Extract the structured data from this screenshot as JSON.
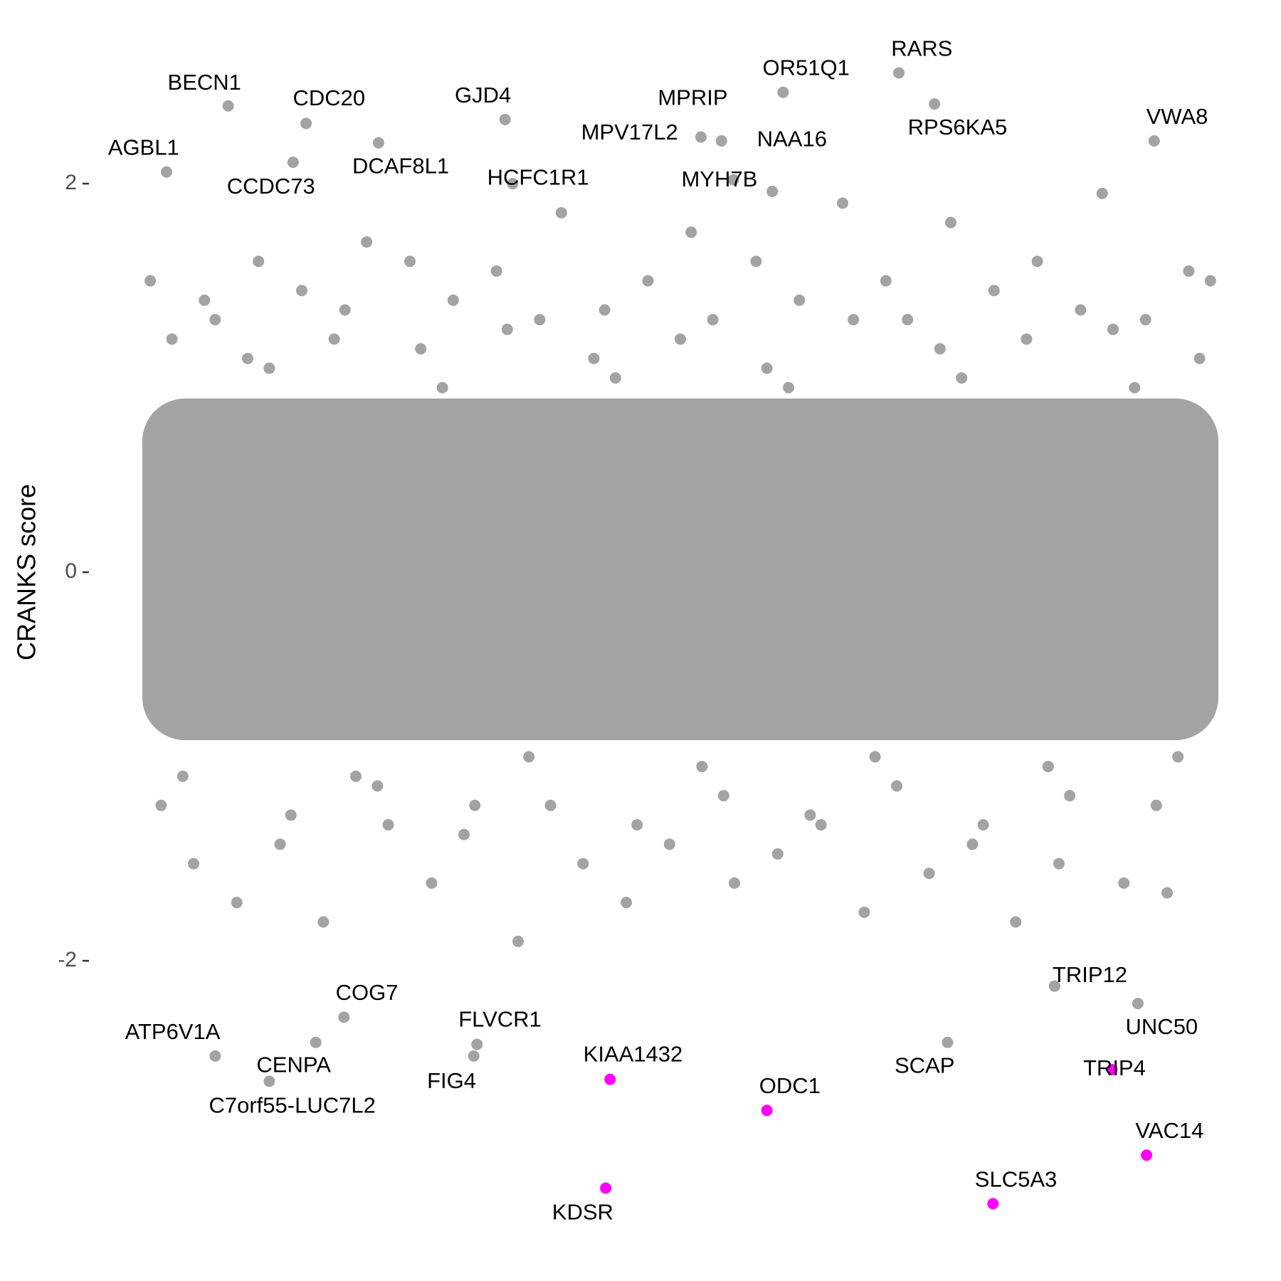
{
  "chart_data": {
    "type": "scatter",
    "y_label": "CRANKS score",
    "xlim": [
      0,
      100
    ],
    "ylim": [
      -3.3,
      2.65
    ],
    "yticks": [
      -2,
      0,
      2
    ],
    "colors": {
      "background": "#a3a3a3",
      "highlight": "#ff00ff"
    },
    "background": {
      "x": [
        1,
        3,
        5,
        7,
        9,
        11,
        13,
        15,
        17,
        19,
        21,
        23,
        25,
        27,
        29,
        31,
        33,
        35,
        37,
        39,
        41,
        43,
        45,
        47,
        49,
        51,
        53,
        55,
        57,
        59,
        61,
        63,
        65,
        67,
        69,
        71,
        73,
        75,
        77,
        79,
        81,
        83,
        85,
        87,
        89,
        91,
        93,
        95,
        97,
        99,
        2,
        6,
        10,
        14,
        18,
        22,
        26,
        30,
        34,
        38,
        42,
        46,
        50,
        54,
        58,
        62,
        66,
        70,
        74,
        78,
        82,
        86,
        90,
        94,
        98,
        4,
        12,
        20,
        28,
        36,
        44,
        52,
        60,
        68,
        76,
        84,
        92,
        96
      ],
      "y": [
        1.5,
        1.2,
        -1.5,
        1.3,
        -1.7,
        1.6,
        -1.4,
        1.45,
        -1.8,
        1.35,
        1.7,
        -1.3,
        1.6,
        -1.6,
        1.4,
        -1.2,
        1.55,
        -1.9,
        1.3,
        1.85,
        -1.5,
        1.35,
        -1.7,
        1.5,
        -1.4,
        1.75,
        1.3,
        -1.6,
        1.6,
        -1.45,
        1.4,
        -1.3,
        1.9,
        -1.75,
        1.5,
        1.3,
        -1.55,
        1.8,
        -1.4,
        1.45,
        -1.8,
        1.6,
        -1.5,
        1.35,
        1.95,
        -1.6,
        1.3,
        -1.65,
        1.55,
        1.5,
        -1.2,
        1.4,
        1.1,
        -1.25,
        1.2,
        -1.1,
        1.15,
        -1.35,
        1.25,
        -1.2,
        1.1,
        -1.3,
        1.2,
        -1.15,
        1.05,
        -1.25,
        1.3,
        -1.1,
        1.15,
        -1.3,
        1.2,
        -1.15,
        1.25,
        -1.2,
        1.1,
        -1.05,
        1.05,
        -1.05,
        0.95,
        -0.95,
        1.0,
        -1.0,
        0.95,
        -0.95,
        1.0,
        -1.0,
        0.95,
        -0.95
      ]
    },
    "labeled_points": [
      {
        "label": "AGBL1",
        "x": 2.5,
        "y": 2.06,
        "color": "#a3a3a3"
      },
      {
        "label": "BECN1",
        "x": 8.2,
        "y": 2.4,
        "color": "#a3a3a3"
      },
      {
        "label": "CDC20",
        "x": 15.4,
        "y": 2.31,
        "color": "#a3a3a3"
      },
      {
        "label": "CCDC73",
        "x": 14.2,
        "y": 2.11,
        "color": "#a3a3a3"
      },
      {
        "label": "DCAF8L1",
        "x": 22.1,
        "y": 2.21,
        "color": "#a3a3a3"
      },
      {
        "label": "GJD4",
        "x": 33.8,
        "y": 2.33,
        "color": "#a3a3a3"
      },
      {
        "label": "HCFC1R1",
        "x": 34.5,
        "y": 2.0,
        "color": "#a3a3a3"
      },
      {
        "label": "MPV17L2",
        "x": 51.9,
        "y": 2.24,
        "color": "#a3a3a3"
      },
      {
        "label": "MPRIP",
        "x": 53.8,
        "y": 2.22,
        "color": "#a3a3a3"
      },
      {
        "label": "MYH7B",
        "x": 54.9,
        "y": 2.02,
        "color": "#a3a3a3"
      },
      {
        "label": "NAA16",
        "x": 58.5,
        "y": 1.96,
        "color": "#a3a3a3"
      },
      {
        "label": "OR51Q1",
        "x": 59.5,
        "y": 2.47,
        "color": "#a3a3a3"
      },
      {
        "label": "RARS",
        "x": 70.2,
        "y": 2.57,
        "color": "#a3a3a3"
      },
      {
        "label": "RPS6KA5",
        "x": 73.5,
        "y": 2.41,
        "color": "#a3a3a3"
      },
      {
        "label": "VWA8",
        "x": 93.8,
        "y": 2.22,
        "color": "#a3a3a3"
      },
      {
        "label": "ATP6V1A",
        "x": 7.0,
        "y": -2.49,
        "color": "#a3a3a3"
      },
      {
        "label": "COG7",
        "x": 18.9,
        "y": -2.29,
        "color": "#a3a3a3"
      },
      {
        "label": "CENPA",
        "x": 16.3,
        "y": -2.42,
        "color": "#a3a3a3"
      },
      {
        "label": "C7orf55-LUC7L2",
        "x": 12.0,
        "y": -2.62,
        "color": "#a3a3a3"
      },
      {
        "label": "FLVCR1",
        "x": 31.2,
        "y": -2.43,
        "color": "#a3a3a3"
      },
      {
        "label": "FIG4",
        "x": 30.9,
        "y": -2.49,
        "color": "#a3a3a3"
      },
      {
        "label": "KIAA1432",
        "x": 43.5,
        "y": -2.61,
        "color": "#ff00ff"
      },
      {
        "label": "KDSR",
        "x": 43.1,
        "y": -3.17,
        "color": "#ff00ff"
      },
      {
        "label": "ODC1",
        "x": 58.0,
        "y": -2.77,
        "color": "#ff00ff"
      },
      {
        "label": "SCAP",
        "x": 74.7,
        "y": -2.42,
        "color": "#a3a3a3"
      },
      {
        "label": "SLC5A3",
        "x": 78.9,
        "y": -3.25,
        "color": "#ff00ff"
      },
      {
        "label": "TRIP12",
        "x": 84.6,
        "y": -2.13,
        "color": "#a3a3a3"
      },
      {
        "label": "UNC50",
        "x": 92.3,
        "y": -2.22,
        "color": "#a3a3a3"
      },
      {
        "label": "TRIP4",
        "x": 89.9,
        "y": -2.56,
        "color": "#ff00ff"
      },
      {
        "label": "VAC14",
        "x": 93.1,
        "y": -3.0,
        "color": "#ff00ff"
      }
    ]
  }
}
